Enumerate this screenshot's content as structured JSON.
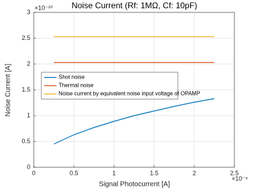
{
  "chart_data": {
    "type": "line",
    "title": "Noise Current (Rf: 1MΩ, Cf: 10pF)",
    "x_label": "Signal Photocurrent [A]",
    "y_label": "Noise Current [A]",
    "x_multiplier": "×10⁻⁶",
    "y_multiplier": "×10⁻¹⁰",
    "xlim": [
      0,
      2.5
    ],
    "xticks": [
      0,
      0.5,
      1,
      1.5,
      2,
      2.5
    ],
    "ylim": [
      0,
      3
    ],
    "yticks": [
      0,
      0.5,
      1,
      1.5,
      2,
      2.5,
      3
    ],
    "grid": true,
    "legend": "west",
    "series": [
      {
        "name": "Shot noise",
        "color": "#0072bd",
        "x": [
          0.25,
          0.5,
          0.75,
          1,
          1.25,
          1.5,
          1.75,
          2,
          2.25
        ],
        "values": [
          0.45,
          0.63,
          0.77,
          0.89,
          1.0,
          1.09,
          1.18,
          1.26,
          1.33
        ]
      },
      {
        "name": "Thermal noise",
        "color": "#d95319",
        "x": [
          0.25,
          2.25
        ],
        "values": [
          2.03,
          2.03
        ]
      },
      {
        "name": "Noise current by equivalent noise input voltage of OPAMP",
        "color": "#edb120",
        "x": [
          0.25,
          2.25
        ],
        "values": [
          2.53,
          2.53
        ]
      }
    ]
  }
}
